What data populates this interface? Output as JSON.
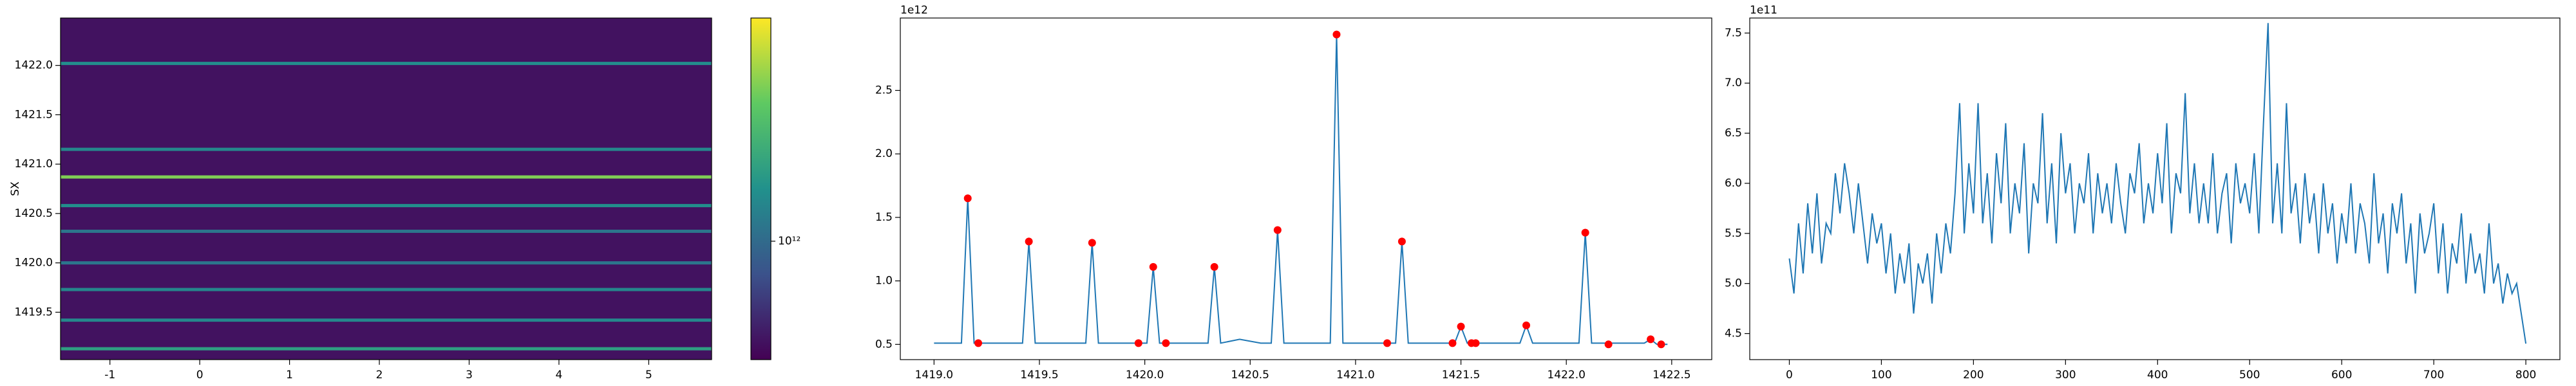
{
  "chart_data": [
    {
      "type": "heatmap",
      "ylabel": "SX",
      "xlim": [
        -1.55,
        5.7
      ],
      "xticks": [
        -1,
        0,
        1,
        2,
        3,
        4,
        5
      ],
      "ylim": [
        1419.02,
        1422.48
      ],
      "yticks": [
        1419.5,
        {
          "value": 1420,
          "label": "1420.0"
        },
        1420.5,
        {
          "value": 1421,
          "label": "1421.0"
        },
        1421.5,
        {
          "value": 1422,
          "label": "1422.0"
        }
      ],
      "colormap": "viridis",
      "log_color": true,
      "clim": [
        440000000000,
        4700000000000
      ],
      "colorbar_ticks": [
        {
          "value": 1000000000000,
          "label": "10¹²"
        }
      ],
      "background": 500000000000,
      "lines": {
        "y": [
          1419.13,
          1419.42,
          1419.73,
          1420.0,
          1420.32,
          1420.58,
          1420.87,
          1421.15,
          1422.02
        ],
        "values": [
          1650000000000,
          1310000000000,
          1300000000000,
          1110000000000,
          1110000000000,
          1400000000000,
          2940000000000,
          1310000000000,
          1380000000000
        ]
      }
    },
    {
      "type": "line",
      "offset_text": "1e12",
      "xlim": [
        1418.84,
        1422.69
      ],
      "xticks": [
        {
          "value": 1419,
          "label": "1419.0"
        },
        1419.5,
        {
          "value": 1420,
          "label": "1420.0"
        },
        1420.5,
        {
          "value": 1421,
          "label": "1421.0"
        },
        1421.5,
        {
          "value": 1422,
          "label": "1422.0"
        },
        1422.5
      ],
      "ylim": [
        0.38,
        3.07
      ],
      "yticks": [
        0.5,
        {
          "value": 1,
          "label": "1.0"
        },
        1.5,
        {
          "value": 2,
          "label": "2.0"
        },
        2.5
      ],
      "series": [
        {
          "color": "#1f77b4",
          "marker": false,
          "x": [
            1419.0,
            1419.13,
            1419.16,
            1419.19,
            1419.42,
            1419.45,
            1419.48,
            1419.72,
            1419.75,
            1419.78,
            1420.01,
            1420.04,
            1420.07,
            1420.3,
            1420.33,
            1420.36,
            1420.45,
            1420.55,
            1420.6,
            1420.63,
            1420.66,
            1420.88,
            1420.91,
            1420.94,
            1421.19,
            1421.22,
            1421.25,
            1421.47,
            1421.5,
            1421.53,
            1421.78,
            1421.81,
            1421.84,
            1422.06,
            1422.09,
            1422.12,
            1422.37,
            1422.4,
            1422.43,
            1422.48
          ],
          "values": [
            0.51,
            0.51,
            1.65,
            0.51,
            0.51,
            1.31,
            0.51,
            0.51,
            1.3,
            0.51,
            0.51,
            1.11,
            0.51,
            0.51,
            1.11,
            0.51,
            0.54,
            0.51,
            0.51,
            1.4,
            0.51,
            0.51,
            2.94,
            0.51,
            0.51,
            1.31,
            0.51,
            0.51,
            0.64,
            0.51,
            0.51,
            0.65,
            0.51,
            0.51,
            1.38,
            0.51,
            0.51,
            0.54,
            0.5,
            0.5
          ]
        },
        {
          "color": "red",
          "marker": true,
          "x": [
            1419.16,
            1419.21,
            1419.45,
            1419.75,
            1419.97,
            1420.04,
            1420.1,
            1420.33,
            1420.63,
            1420.91,
            1421.15,
            1421.22,
            1421.46,
            1421.5,
            1421.55,
            1421.57,
            1421.81,
            1422.09,
            1422.2,
            1422.4,
            1422.45
          ],
          "values": [
            1.65,
            0.51,
            1.31,
            1.3,
            0.51,
            1.11,
            0.51,
            1.11,
            1.4,
            2.94,
            0.51,
            1.31,
            0.51,
            0.64,
            0.51,
            0.51,
            0.65,
            1.38,
            0.5,
            0.54,
            0.5
          ]
        }
      ]
    },
    {
      "type": "line",
      "offset_text": "1e11",
      "xlim": [
        -43,
        837
      ],
      "xticks": [
        0,
        100,
        200,
        300,
        400,
        500,
        600,
        700,
        800
      ],
      "ylim": [
        4.24,
        7.65
      ],
      "yticks": [
        4.5,
        {
          "value": 5,
          "label": "5.0"
        },
        5.5,
        {
          "value": 6,
          "label": "6.0"
        },
        6.5,
        {
          "value": 7,
          "label": "7.0"
        },
        7.5
      ],
      "series": [
        {
          "color": "#1f77b4",
          "marker": false,
          "x": [
            0,
            5,
            10,
            15,
            20,
            25,
            30,
            35,
            40,
            45,
            50,
            55,
            60,
            65,
            70,
            75,
            80,
            85,
            90,
            95,
            100,
            105,
            110,
            115,
            120,
            125,
            130,
            135,
            140,
            145,
            150,
            155,
            160,
            165,
            170,
            175,
            180,
            185,
            190,
            195,
            200,
            205,
            210,
            215,
            220,
            225,
            230,
            235,
            240,
            245,
            250,
            255,
            260,
            265,
            270,
            275,
            280,
            285,
            290,
            295,
            300,
            305,
            310,
            315,
            320,
            325,
            330,
            335,
            340,
            345,
            350,
            355,
            360,
            365,
            370,
            375,
            380,
            385,
            390,
            395,
            400,
            405,
            410,
            415,
            420,
            425,
            430,
            435,
            440,
            445,
            450,
            455,
            460,
            465,
            470,
            475,
            480,
            485,
            490,
            495,
            500,
            505,
            510,
            515,
            520,
            525,
            530,
            535,
            540,
            545,
            550,
            555,
            560,
            565,
            570,
            575,
            580,
            585,
            590,
            595,
            600,
            605,
            610,
            615,
            620,
            625,
            630,
            635,
            640,
            645,
            650,
            655,
            660,
            665,
            670,
            675,
            680,
            685,
            690,
            695,
            700,
            705,
            710,
            715,
            720,
            725,
            730,
            735,
            740,
            745,
            750,
            755,
            760,
            765,
            770,
            775,
            780,
            785,
            790,
            795,
            800
          ],
          "values": [
            5.25,
            4.9,
            5.6,
            5.1,
            5.8,
            5.3,
            5.9,
            5.2,
            5.6,
            5.5,
            6.1,
            5.7,
            6.2,
            5.9,
            5.5,
            6.0,
            5.6,
            5.2,
            5.7,
            5.4,
            5.6,
            5.1,
            5.5,
            4.9,
            5.3,
            5.0,
            5.4,
            4.7,
            5.2,
            5.0,
            5.3,
            4.8,
            5.5,
            5.1,
            5.6,
            5.3,
            5.9,
            6.8,
            5.5,
            6.2,
            5.7,
            6.8,
            5.6,
            6.1,
            5.4,
            6.3,
            5.8,
            6.6,
            5.5,
            6.0,
            5.7,
            6.4,
            5.3,
            6.0,
            5.8,
            6.7,
            5.6,
            6.2,
            5.4,
            6.5,
            5.9,
            6.2,
            5.5,
            6.0,
            5.8,
            6.3,
            5.5,
            6.1,
            5.7,
            6.0,
            5.6,
            6.2,
            5.8,
            5.5,
            6.1,
            5.9,
            6.4,
            5.6,
            6.0,
            5.7,
            6.3,
            5.8,
            6.6,
            5.5,
            6.1,
            5.9,
            6.9,
            5.7,
            6.2,
            5.6,
            6.0,
            5.6,
            6.3,
            5.5,
            5.9,
            6.1,
            5.4,
            6.2,
            5.8,
            6.0,
            5.7,
            6.3,
            5.5,
            6.6,
            7.6,
            5.6,
            6.2,
            5.5,
            6.8,
            5.7,
            6.0,
            5.4,
            6.1,
            5.6,
            5.9,
            5.3,
            6.0,
            5.5,
            5.8,
            5.2,
            5.7,
            5.4,
            6.0,
            5.3,
            5.8,
            5.6,
            5.2,
            6.1,
            5.4,
            5.7,
            5.1,
            5.8,
            5.5,
            5.9,
            5.2,
            5.6,
            4.9,
            5.7,
            5.3,
            5.5,
            5.8,
            5.1,
            5.6,
            4.9,
            5.4,
            5.2,
            5.7,
            5.0,
            5.5,
            5.1,
            5.3,
            4.9,
            5.6,
            5.0,
            5.2,
            4.8,
            5.1,
            4.9,
            5.0,
            4.7,
            4.4
          ]
        }
      ]
    }
  ]
}
